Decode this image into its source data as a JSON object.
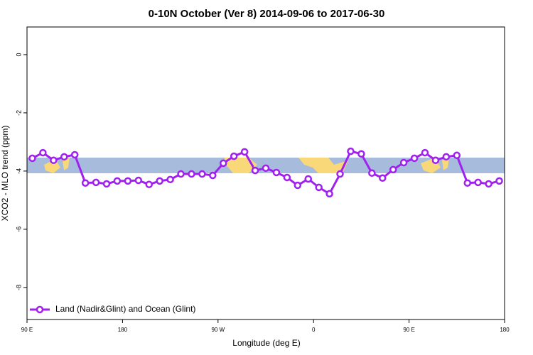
{
  "chart_data": {
    "type": "line",
    "title": "0-10N October (Ver 8)   2014-09-06 to 2017-06-30",
    "x_label": "Longitude (deg E)",
    "y_label": "XCO2 - MLO trend (ppm)",
    "x": [
      95,
      105,
      115,
      125,
      135,
      145,
      155,
      165,
      175,
      185,
      195,
      205,
      215,
      225,
      235,
      245,
      255,
      265,
      275,
      285,
      295,
      305,
      315,
      325,
      335,
      345,
      355,
      365,
      375,
      385,
      395,
      405,
      415,
      425,
      435,
      445,
      455,
      465,
      475,
      485,
      495,
      505,
      515,
      525,
      535
    ],
    "series": [
      {
        "name": "Land (Nadir&Glint) and Ocean (Glint)",
        "color": "#a020f0",
        "values": [
          -3.56,
          -3.37,
          -3.63,
          -3.51,
          -3.44,
          -4.41,
          -4.39,
          -4.44,
          -4.34,
          -4.34,
          -4.32,
          -4.46,
          -4.34,
          -4.29,
          -4.1,
          -4.1,
          -4.1,
          -4.15,
          -3.73,
          -3.49,
          -3.34,
          -3.98,
          -3.9,
          -4.05,
          -4.22,
          -4.49,
          -4.27,
          -4.56,
          -4.78,
          -4.1,
          -3.32,
          -3.41,
          -4.07,
          -4.24,
          -3.95,
          -3.71,
          -3.56,
          -3.37,
          -3.63,
          -3.51,
          -3.46,
          -4.41,
          -4.39,
          -4.44,
          -4.34
        ]
      }
    ],
    "xlim": [
      90,
      540
    ],
    "xticks": [
      {
        "value": 90,
        "label": "90 E"
      },
      180,
      {
        "value": 270,
        "label": "90 W"
      },
      {
        "value": 360,
        "label": "0"
      },
      {
        "value": 450,
        "label": "90 E"
      },
      {
        "value": 540,
        "label": "180"
      }
    ],
    "ylim": [
      -9.1,
      0.95
    ],
    "yticks": [
      0,
      -2,
      -4,
      -6,
      -8
    ],
    "legend": "bottom-left"
  }
}
